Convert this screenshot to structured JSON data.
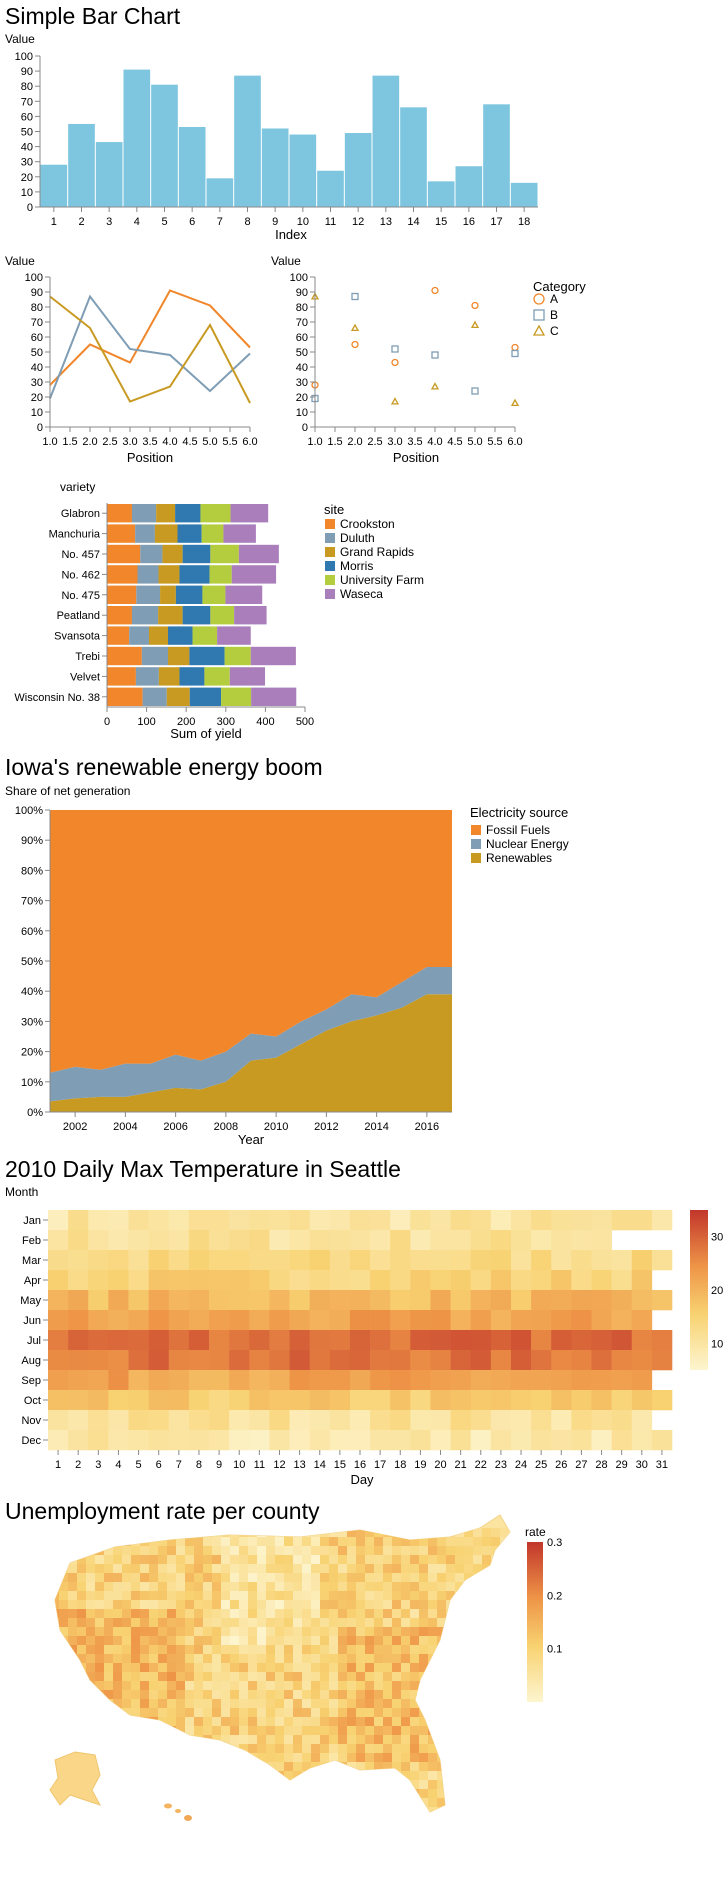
{
  "colors": {
    "bar": "#7ec6e0",
    "orange": "#f1862a",
    "steel": "#7f9db4",
    "gold": "#c89a22",
    "blue": "#2f78b0",
    "green": "#b3cd3e",
    "purple": "#aa7ebb",
    "axis": "#888888",
    "grid": "#dddddd"
  },
  "chart_data": [
    {
      "type": "bar",
      "title": "Simple Bar Chart",
      "xlabel": "Index",
      "ylabel": "Value",
      "ylim": [
        0,
        100
      ],
      "yticks": [
        0,
        10,
        20,
        30,
        40,
        50,
        60,
        70,
        80,
        90,
        100
      ],
      "categories": [
        "1",
        "2",
        "3",
        "4",
        "5",
        "6",
        "7",
        "8",
        "9",
        "10",
        "11",
        "12",
        "13",
        "14",
        "15",
        "16",
        "17",
        "18"
      ],
      "values": [
        28,
        55,
        43,
        91,
        81,
        53,
        19,
        87,
        52,
        48,
        24,
        49,
        87,
        66,
        17,
        27,
        68,
        16
      ]
    },
    {
      "type": "line",
      "xlabel": "Position",
      "ylabel": "Value",
      "ylim": [
        0,
        100
      ],
      "xlim": [
        1,
        6
      ],
      "xticks": [
        "1.0",
        "1.5",
        "2.0",
        "2.5",
        "3.0",
        "3.5",
        "4.0",
        "4.5",
        "5.0",
        "5.5",
        "6.0"
      ],
      "yticks": [
        0,
        10,
        20,
        30,
        40,
        50,
        60,
        70,
        80,
        90,
        100
      ],
      "x": [
        1,
        2,
        3,
        4,
        5,
        6
      ],
      "series": [
        {
          "values": [
            28,
            55,
            43,
            91,
            81,
            53
          ]
        },
        {
          "values": [
            19,
            87,
            52,
            48,
            24,
            49
          ]
        },
        {
          "values": [
            87,
            66,
            17,
            27,
            68,
            16
          ]
        }
      ]
    },
    {
      "type": "scatter",
      "xlabel": "Position",
      "ylabel": "Value",
      "ylim": [
        0,
        100
      ],
      "xlim": [
        1,
        6
      ],
      "xticks": [
        "1.0",
        "1.5",
        "2.0",
        "2.5",
        "3.0",
        "3.5",
        "4.0",
        "4.5",
        "5.0",
        "5.5",
        "6.0"
      ],
      "yticks": [
        0,
        10,
        20,
        30,
        40,
        50,
        60,
        70,
        80,
        90,
        100
      ],
      "legend_title": "Category",
      "legend_position": "top-right",
      "x": [
        1,
        2,
        3,
        4,
        5,
        6
      ],
      "series": [
        {
          "name": "A",
          "shape": "circle",
          "values": [
            28,
            55,
            43,
            91,
            81,
            53
          ]
        },
        {
          "name": "B",
          "shape": "square",
          "values": [
            19,
            87,
            52,
            48,
            24,
            49
          ]
        },
        {
          "name": "C",
          "shape": "triangle",
          "values": [
            87,
            66,
            17,
            27,
            68,
            16
          ]
        }
      ]
    },
    {
      "type": "bar",
      "orientation": "horizontal-stacked",
      "ylabel": "variety",
      "xlabel": "Sum of yield",
      "xlim": [
        0,
        500
      ],
      "xticks": [
        0,
        100,
        200,
        300,
        400,
        500
      ],
      "legend_title": "site",
      "legend_position": "right",
      "categories": [
        "Glabron",
        "Manchuria",
        "No. 457",
        "No. 462",
        "No. 475",
        "Peatland",
        "Svansota",
        "Trebi",
        "Velvet",
        "Wisconsin No. 38"
      ],
      "series": [
        {
          "name": "Crookston",
          "values": [
            63,
            71,
            84,
            77,
            74,
            63,
            56,
            88,
            73,
            90
          ]
        },
        {
          "name": "Duluth",
          "values": [
            61,
            50,
            56,
            53,
            60,
            66,
            50,
            66,
            58,
            61
          ]
        },
        {
          "name": "Grand Rapids",
          "values": [
            48,
            57,
            51,
            53,
            40,
            62,
            48,
            54,
            52,
            58
          ]
        },
        {
          "name": "Morris",
          "values": [
            64,
            61,
            70,
            76,
            67,
            70,
            62,
            89,
            63,
            79
          ]
        },
        {
          "name": "University Farm",
          "values": [
            76,
            55,
            72,
            56,
            58,
            60,
            62,
            66,
            64,
            76
          ]
        },
        {
          "name": "Waseca",
          "values": [
            95,
            82,
            101,
            112,
            93,
            82,
            85,
            114,
            89,
            114
          ]
        }
      ]
    },
    {
      "type": "area",
      "title": "Iowa's renewable energy boom",
      "ylabel": "Share of net generation",
      "xlabel": "Year",
      "ylim": [
        0,
        100
      ],
      "yticks": [
        "0%",
        "10%",
        "20%",
        "30%",
        "40%",
        "50%",
        "60%",
        "70%",
        "80%",
        "90%",
        "100%"
      ],
      "xticks": [
        "2002",
        "2004",
        "2006",
        "2008",
        "2010",
        "2012",
        "2014",
        "2016"
      ],
      "legend_title": "Electricity source",
      "legend_position": "top-right",
      "x": [
        2001,
        2002,
        2003,
        2004,
        2005,
        2006,
        2007,
        2008,
        2009,
        2010,
        2011,
        2012,
        2013,
        2014,
        2015,
        2016,
        2017
      ],
      "series": [
        {
          "name": "Fossil Fuels",
          "values": [
            87,
            85,
            86,
            84,
            84,
            81,
            83,
            80,
            74,
            75,
            70,
            66,
            61,
            62,
            57,
            52,
            52
          ]
        },
        {
          "name": "Nuclear Energy",
          "values": [
            9.5,
            10.5,
            9,
            11,
            9.5,
            11,
            9.5,
            10,
            9,
            7,
            7.5,
            7,
            9,
            6,
            8.5,
            9,
            9
          ]
        },
        {
          "name": "Renewables",
          "values": [
            3.5,
            4.5,
            5,
            5,
            6.5,
            8,
            7.5,
            10,
            17,
            18,
            22.5,
            27,
            30,
            32,
            34.5,
            39,
            39
          ]
        }
      ]
    },
    {
      "type": "heatmap",
      "title": "2010 Daily Max Temperature in Seattle",
      "ylabel": "Month",
      "xlabel": "Day",
      "rows": [
        "Jan",
        "Feb",
        "Mar",
        "Apr",
        "May",
        "Jun",
        "Jul",
        "Aug",
        "Sep",
        "Oct",
        "Nov",
        "Dec"
      ],
      "columns": [
        "1",
        "2",
        "3",
        "4",
        "5",
        "6",
        "7",
        "8",
        "9",
        "10",
        "11",
        "12",
        "13",
        "14",
        "15",
        "16",
        "17",
        "18",
        "19",
        "20",
        "21",
        "22",
        "23",
        "24",
        "25",
        "26",
        "27",
        "28",
        "29",
        "30",
        "31"
      ],
      "days_in_month": [
        31,
        28,
        31,
        30,
        31,
        30,
        31,
        31,
        30,
        31,
        30,
        31
      ],
      "monthly_mean_max": [
        10,
        11,
        13,
        15,
        19,
        22,
        29,
        28,
        22,
        16,
        11,
        9
      ],
      "color_range": [
        5,
        35
      ],
      "legend_ticks": [
        10,
        20,
        30
      ]
    },
    {
      "type": "map",
      "title": "Unemployment rate per county",
      "legend_title": "rate",
      "legend_ticks": [
        "0.1",
        "0.2",
        "0.3"
      ],
      "color_range": [
        0,
        0.3
      ]
    }
  ]
}
